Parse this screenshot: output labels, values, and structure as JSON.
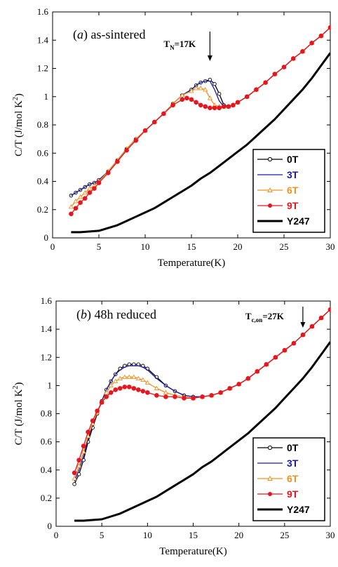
{
  "chart_data": [
    {
      "type": "line",
      "panel_label": "a",
      "title_rest": "as-sintered",
      "annotation": {
        "main": "T",
        "sub": "N",
        "rest": "=17K",
        "x": 17
      },
      "xlabel": "Temperature(K)",
      "ylabel": "C/T (J/mol K",
      "ylabel_sup": "2",
      "ylabel_close": ")",
      "xlim": [
        0,
        30
      ],
      "ylim": [
        0,
        1.6
      ],
      "xticks": [
        "0",
        "5",
        "10",
        "15",
        "20",
        "25",
        "30"
      ],
      "yticks": [
        "0",
        "0.2",
        "0.4",
        "0.6",
        "0.8",
        "1",
        "1.2",
        "1.4",
        "1.6"
      ],
      "legend_position": "bottom-right",
      "series": [
        {
          "name": "0T",
          "color": "#000000",
          "marker": "open-circle",
          "x": [
            2,
            2.5,
            3,
            3.5,
            4,
            4.5,
            5,
            6,
            7,
            8,
            9,
            10,
            11,
            12,
            13,
            14,
            15,
            15.5,
            16,
            16.5,
            17,
            17.5,
            18,
            18.5,
            19,
            19.5,
            20,
            21,
            22,
            23,
            24,
            25,
            26,
            27,
            28,
            29,
            30
          ],
          "y": [
            0.3,
            0.32,
            0.34,
            0.36,
            0.38,
            0.39,
            0.41,
            0.47,
            0.55,
            0.63,
            0.7,
            0.76,
            0.82,
            0.88,
            0.95,
            1.01,
            1.05,
            1.08,
            1.1,
            1.11,
            1.12,
            1.09,
            1.02,
            0.94,
            0.93,
            0.94,
            0.96,
            1.0,
            1.05,
            1.1,
            1.16,
            1.21,
            1.27,
            1.32,
            1.38,
            1.43,
            1.49
          ]
        },
        {
          "name": "3T",
          "color": "#1a1aa8",
          "marker": "none",
          "x": [
            2,
            2.5,
            3,
            3.5,
            4,
            4.5,
            5,
            6,
            7,
            8,
            9,
            10,
            11,
            12,
            13,
            14,
            15,
            15.5,
            16,
            16.5,
            17,
            17.5,
            18,
            18.5,
            19,
            19.5,
            20,
            21,
            22,
            23,
            24,
            25,
            26,
            27,
            28,
            29,
            30
          ],
          "y": [
            0.3,
            0.32,
            0.34,
            0.36,
            0.38,
            0.39,
            0.41,
            0.47,
            0.55,
            0.63,
            0.7,
            0.76,
            0.82,
            0.88,
            0.95,
            1.01,
            1.05,
            1.08,
            1.1,
            1.11,
            1.11,
            1.05,
            0.97,
            0.93,
            0.93,
            0.94,
            0.96,
            1.0,
            1.05,
            1.1,
            1.16,
            1.21,
            1.27,
            1.32,
            1.38,
            1.43,
            1.49
          ]
        },
        {
          "name": "6T",
          "color": "#f0901e",
          "marker": "open-triangle",
          "x": [
            2,
            2.5,
            3,
            3.5,
            4,
            4.5,
            5,
            6,
            7,
            8,
            9,
            10,
            11,
            12,
            13,
            14,
            15,
            15.5,
            16,
            16.5,
            17,
            17.5,
            18,
            18.5,
            19,
            19.5,
            20,
            21,
            22,
            23,
            24,
            25,
            26,
            27,
            28,
            29,
            30
          ],
          "y": [
            0.22,
            0.26,
            0.29,
            0.32,
            0.35,
            0.37,
            0.4,
            0.47,
            0.55,
            0.63,
            0.7,
            0.76,
            0.82,
            0.88,
            0.95,
            1.01,
            1.04,
            1.06,
            1.06,
            1.05,
            0.99,
            0.94,
            0.93,
            0.93,
            0.93,
            0.94,
            0.96,
            1.0,
            1.05,
            1.1,
            1.16,
            1.21,
            1.27,
            1.32,
            1.38,
            1.43,
            1.49
          ]
        },
        {
          "name": "9T",
          "color": "#e8141e",
          "marker": "filled-circle",
          "x": [
            2,
            2.5,
            3,
            3.5,
            4,
            4.5,
            5,
            6,
            7,
            8,
            9,
            10,
            11,
            12,
            13,
            14,
            14.5,
            15,
            15.5,
            16,
            16.5,
            17,
            17.5,
            18,
            18.5,
            19,
            19.5,
            20,
            21,
            22,
            23,
            24,
            25,
            26,
            27,
            28,
            29,
            30
          ],
          "y": [
            0.17,
            0.21,
            0.25,
            0.28,
            0.32,
            0.35,
            0.39,
            0.46,
            0.54,
            0.62,
            0.69,
            0.76,
            0.82,
            0.88,
            0.94,
            0.98,
            0.99,
            0.98,
            0.96,
            0.94,
            0.93,
            0.92,
            0.92,
            0.92,
            0.93,
            0.93,
            0.94,
            0.96,
            1.0,
            1.05,
            1.1,
            1.16,
            1.21,
            1.27,
            1.32,
            1.38,
            1.43,
            1.49
          ]
        },
        {
          "name": "Y247",
          "color": "#000000",
          "marker": "none",
          "thick": true,
          "x": [
            2,
            3,
            4,
            5,
            6,
            7,
            8,
            9,
            10,
            11,
            12,
            13,
            14,
            15,
            16,
            17,
            18,
            19,
            20,
            21,
            22,
            23,
            24,
            25,
            26,
            27,
            28,
            29,
            30
          ],
          "y": [
            0.04,
            0.04,
            0.045,
            0.05,
            0.07,
            0.09,
            0.12,
            0.15,
            0.18,
            0.21,
            0.25,
            0.29,
            0.33,
            0.37,
            0.42,
            0.46,
            0.51,
            0.56,
            0.61,
            0.66,
            0.72,
            0.78,
            0.84,
            0.91,
            0.98,
            1.05,
            1.13,
            1.22,
            1.31
          ]
        }
      ]
    },
    {
      "type": "line",
      "panel_label": "b",
      "title_rest": "48h reduced",
      "annotation": {
        "main": "T",
        "sub": "c,on",
        "rest": "=27K",
        "x": 27
      },
      "xlabel": "Temperature(K)",
      "ylabel": "C/T (J/mol K",
      "ylabel_sup": "2",
      "ylabel_close": ")",
      "xlim": [
        0,
        30
      ],
      "ylim": [
        0,
        1.6
      ],
      "xticks": [
        "0",
        "5",
        "10",
        "15",
        "20",
        "25",
        "30"
      ],
      "yticks": [
        "0",
        "0.2",
        "0.4",
        "0.6",
        "0.8",
        "1",
        "1.2",
        "1.4",
        "1.6"
      ],
      "legend_position": "bottom-right",
      "series": [
        {
          "name": "0T",
          "color": "#000000",
          "marker": "open-circle",
          "x": [
            2,
            2.5,
            3,
            3.5,
            4,
            4.5,
            5,
            5.5,
            6,
            6.5,
            7,
            7.5,
            8,
            8.5,
            9,
            9.5,
            10,
            11,
            12,
            13,
            14,
            15,
            16,
            17,
            18,
            19,
            20,
            21,
            22,
            23,
            24,
            25,
            26,
            27,
            28,
            29,
            30
          ],
          "y": [
            0.3,
            0.37,
            0.47,
            0.6,
            0.7,
            0.8,
            0.89,
            0.97,
            1.03,
            1.08,
            1.12,
            1.14,
            1.15,
            1.15,
            1.15,
            1.14,
            1.12,
            1.06,
            1.0,
            0.96,
            0.93,
            0.92,
            0.92,
            0.93,
            0.95,
            0.98,
            1.01,
            1.05,
            1.1,
            1.15,
            1.2,
            1.25,
            1.3,
            1.36,
            1.42,
            1.48,
            1.54
          ]
        },
        {
          "name": "3T",
          "color": "#1a1aa8",
          "marker": "none",
          "x": [
            2,
            2.5,
            3,
            3.5,
            4,
            4.5,
            5,
            5.5,
            6,
            6.5,
            7,
            7.5,
            8,
            8.5,
            9,
            9.5,
            10,
            11,
            12,
            13,
            14,
            15,
            16,
            17,
            18,
            19,
            20,
            21,
            22,
            23,
            24,
            25,
            26,
            27,
            28,
            29,
            30
          ],
          "y": [
            0.32,
            0.4,
            0.5,
            0.62,
            0.72,
            0.81,
            0.89,
            0.97,
            1.03,
            1.08,
            1.11,
            1.13,
            1.14,
            1.14,
            1.14,
            1.13,
            1.11,
            1.05,
            1.0,
            0.96,
            0.93,
            0.92,
            0.92,
            0.93,
            0.95,
            0.98,
            1.01,
            1.05,
            1.1,
            1.15,
            1.2,
            1.25,
            1.3,
            1.36,
            1.42,
            1.48,
            1.54
          ]
        },
        {
          "name": "6T",
          "color": "#f0901e",
          "marker": "open-triangle",
          "x": [
            2,
            2.5,
            3,
            3.5,
            4,
            4.5,
            5,
            5.5,
            6,
            6.5,
            7,
            7.5,
            8,
            8.5,
            9,
            9.5,
            10,
            11,
            12,
            13,
            14,
            15,
            16,
            17,
            18,
            19,
            20,
            21,
            22,
            23,
            24,
            25,
            26,
            27,
            28,
            29,
            30
          ],
          "y": [
            0.34,
            0.43,
            0.53,
            0.64,
            0.73,
            0.81,
            0.88,
            0.95,
            1.0,
            1.03,
            1.05,
            1.06,
            1.06,
            1.06,
            1.05,
            1.04,
            1.02,
            0.98,
            0.95,
            0.93,
            0.92,
            0.91,
            0.92,
            0.93,
            0.95,
            0.98,
            1.01,
            1.05,
            1.1,
            1.15,
            1.2,
            1.25,
            1.3,
            1.36,
            1.42,
            1.48,
            1.54
          ]
        },
        {
          "name": "9T",
          "color": "#e8141e",
          "marker": "filled-circle",
          "x": [
            2,
            2.5,
            3,
            3.5,
            4,
            4.5,
            5,
            5.5,
            6,
            6.5,
            7,
            7.5,
            8,
            8.5,
            9,
            9.5,
            10,
            11,
            12,
            13,
            14,
            15,
            16,
            17,
            18,
            19,
            20,
            21,
            22,
            23,
            24,
            25,
            26,
            27,
            28,
            29,
            30
          ],
          "y": [
            0.38,
            0.47,
            0.57,
            0.67,
            0.75,
            0.82,
            0.88,
            0.92,
            0.95,
            0.97,
            0.98,
            0.99,
            0.99,
            0.98,
            0.97,
            0.96,
            0.95,
            0.93,
            0.92,
            0.92,
            0.91,
            0.91,
            0.92,
            0.93,
            0.95,
            0.98,
            1.01,
            1.05,
            1.1,
            1.15,
            1.2,
            1.25,
            1.3,
            1.36,
            1.42,
            1.48,
            1.54
          ]
        },
        {
          "name": "Y247",
          "color": "#000000",
          "marker": "none",
          "thick": true,
          "x": [
            2,
            3,
            4,
            5,
            6,
            7,
            8,
            9,
            10,
            11,
            12,
            13,
            14,
            15,
            16,
            17,
            18,
            19,
            20,
            21,
            22,
            23,
            24,
            25,
            26,
            27,
            28,
            29,
            30
          ],
          "y": [
            0.04,
            0.04,
            0.045,
            0.05,
            0.07,
            0.09,
            0.12,
            0.15,
            0.18,
            0.21,
            0.25,
            0.29,
            0.33,
            0.37,
            0.42,
            0.46,
            0.51,
            0.56,
            0.61,
            0.66,
            0.72,
            0.78,
            0.84,
            0.91,
            0.98,
            1.05,
            1.13,
            1.22,
            1.31
          ]
        }
      ]
    }
  ]
}
